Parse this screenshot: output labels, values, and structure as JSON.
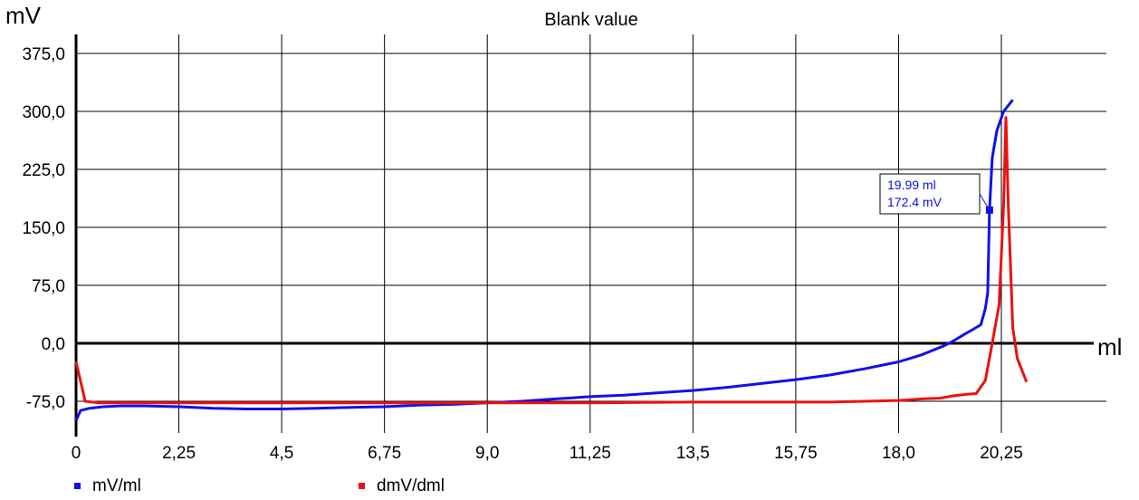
{
  "chart_data": {
    "type": "line",
    "title": "Blank value",
    "xlabel": "ml",
    "ylabel": "mV",
    "xlim": [
      0,
      21.6
    ],
    "ylim": [
      -100,
      390
    ],
    "x_ticks": [
      "0",
      "2,25",
      "4,5",
      "6,75",
      "9,0",
      "11,25",
      "13,5",
      "15,75",
      "18,0",
      "20,25"
    ],
    "x_tick_values": [
      0,
      2.25,
      4.5,
      6.75,
      9.0,
      11.25,
      13.5,
      15.75,
      18.0,
      20.25
    ],
    "y_ticks": [
      "-75,0",
      "0,0",
      "75,0",
      "150,0",
      "225,0",
      "300,0",
      "375,0"
    ],
    "y_tick_values": [
      -75,
      0,
      75,
      150,
      225,
      300,
      375
    ],
    "grid": true,
    "legend_position": "bottom-left",
    "series": [
      {
        "name": "mV/ml",
        "color": "#1010ee",
        "points": [
          [
            0.0,
            -100
          ],
          [
            0.1,
            -87
          ],
          [
            0.3,
            -84
          ],
          [
            0.6,
            -82
          ],
          [
            1.0,
            -81
          ],
          [
            1.5,
            -81
          ],
          [
            2.25,
            -82
          ],
          [
            3.0,
            -84
          ],
          [
            3.75,
            -85
          ],
          [
            4.5,
            -85
          ],
          [
            5.25,
            -84
          ],
          [
            6.0,
            -83
          ],
          [
            6.75,
            -82
          ],
          [
            7.5,
            -80
          ],
          [
            8.25,
            -79
          ],
          [
            9.0,
            -77
          ],
          [
            9.75,
            -75
          ],
          [
            10.5,
            -72
          ],
          [
            11.25,
            -69
          ],
          [
            12.0,
            -67
          ],
          [
            12.75,
            -64
          ],
          [
            13.5,
            -61
          ],
          [
            14.25,
            -57
          ],
          [
            15.0,
            -52
          ],
          [
            15.75,
            -47
          ],
          [
            16.5,
            -41
          ],
          [
            17.25,
            -33
          ],
          [
            18.0,
            -24
          ],
          [
            18.5,
            -15
          ],
          [
            19.0,
            -3
          ],
          [
            19.2,
            3
          ],
          [
            19.45,
            12
          ],
          [
            19.6,
            17
          ],
          [
            19.8,
            24
          ],
          [
            19.9,
            45
          ],
          [
            19.95,
            65
          ],
          [
            19.99,
            172.4
          ],
          [
            20.05,
            240
          ],
          [
            20.15,
            275
          ],
          [
            20.3,
            300
          ],
          [
            20.5,
            315
          ]
        ]
      },
      {
        "name": "dmV/dml",
        "color": "#ee1010",
        "points": [
          [
            0.0,
            -24
          ],
          [
            0.2,
            -75
          ],
          [
            0.5,
            -77
          ],
          [
            1.0,
            -77
          ],
          [
            2.25,
            -77
          ],
          [
            4.5,
            -77
          ],
          [
            6.75,
            -77
          ],
          [
            9.0,
            -77
          ],
          [
            11.25,
            -77
          ],
          [
            13.5,
            -76
          ],
          [
            15.0,
            -76
          ],
          [
            15.75,
            -76
          ],
          [
            16.5,
            -76
          ],
          [
            17.25,
            -75
          ],
          [
            18.0,
            -74
          ],
          [
            18.5,
            -72
          ],
          [
            18.9,
            -71
          ],
          [
            19.2,
            -68
          ],
          [
            19.5,
            -66
          ],
          [
            19.7,
            -65
          ],
          [
            19.9,
            -48
          ],
          [
            20.05,
            0
          ],
          [
            20.2,
            50
          ],
          [
            20.3,
            180
          ],
          [
            20.35,
            292
          ],
          [
            20.4,
            180
          ],
          [
            20.5,
            20
          ],
          [
            20.6,
            -20
          ],
          [
            20.8,
            -50
          ]
        ]
      }
    ],
    "annotation": {
      "lines": [
        "19.99 ml",
        "172.4 mV"
      ],
      "x": 19.99,
      "y": 172.4,
      "color": "#1010ee"
    }
  }
}
